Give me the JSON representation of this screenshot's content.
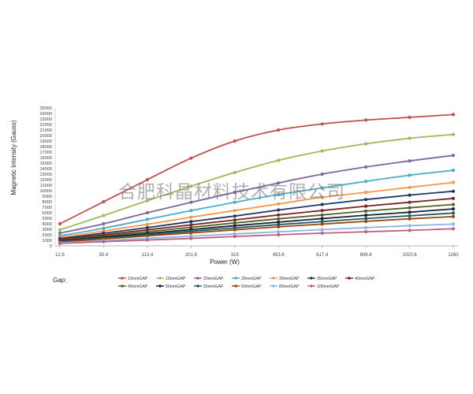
{
  "watermark": "合肥科晶材料技术有限公司",
  "legend_title": "Gap:",
  "chart_data": {
    "type": "line",
    "ylabel": "Magnetic Intensity (Gauss)",
    "xlabel": "Power  (W)",
    "categories": [
      "12.6",
      "50.4",
      "113.4",
      "201.6",
      "315",
      "453.6",
      "617.4",
      "806.4",
      "1020.6",
      "1260"
    ],
    "ylim": [
      0,
      25000
    ],
    "yticks": [
      0,
      1000,
      2000,
      3000,
      4000,
      5000,
      6000,
      7000,
      8000,
      9000,
      10000,
      11000,
      12000,
      13000,
      14000,
      15000,
      16000,
      17000,
      18000,
      19000,
      20000,
      21000,
      22000,
      23000,
      24000,
      25000
    ],
    "grid": false,
    "legend_position": "bottom",
    "series": [
      {
        "name": "10mmGAP",
        "color": "#c0504d",
        "values": [
          4000,
          8000,
          12000,
          15900,
          19000,
          21000,
          22100,
          22800,
          23300,
          23800
        ]
      },
      {
        "name": "15mmGAP",
        "color": "#9bbb59",
        "values": [
          2900,
          5500,
          8200,
          10800,
          13300,
          15500,
          17200,
          18500,
          19500,
          20200
        ]
      },
      {
        "name": "20mmGAP",
        "color": "#8064a2",
        "values": [
          2300,
          4000,
          6000,
          7900,
          9700,
          11400,
          13000,
          14300,
          15400,
          16400
        ]
      },
      {
        "name": "25mmGAP",
        "color": "#4bacc6",
        "values": [
          1800,
          3200,
          4800,
          6400,
          7900,
          9300,
          10500,
          11700,
          12800,
          13700
        ]
      },
      {
        "name": "30mmGAP",
        "color": "#f79646",
        "values": [
          1500,
          2700,
          3900,
          5200,
          6400,
          7600,
          8800,
          9700,
          10600,
          11500
        ]
      },
      {
        "name": "35mmGAP",
        "color": "#1f3864",
        "values": [
          1300,
          2300,
          3300,
          4400,
          5400,
          6500,
          7500,
          8400,
          9200,
          9900
        ]
      },
      {
        "name": "40mmGAP",
        "color": "#7b2324",
        "values": [
          1150,
          2000,
          2900,
          3800,
          4700,
          5600,
          6400,
          7200,
          7900,
          8600
        ]
      },
      {
        "name": "45mmGAP",
        "color": "#4f6228",
        "values": [
          1000,
          1750,
          2550,
          3350,
          4150,
          4900,
          5600,
          6300,
          6900,
          7500
        ]
      },
      {
        "name": "50mmGAP",
        "color": "#17202e",
        "values": [
          900,
          1550,
          2250,
          2950,
          3650,
          4300,
          4950,
          5550,
          6100,
          6700
        ]
      },
      {
        "name": "55mmGAP",
        "color": "#205867",
        "values": [
          800,
          1400,
          2000,
          2650,
          3250,
          3850,
          4400,
          4950,
          5450,
          5950
        ]
      },
      {
        "name": "60mmGAP",
        "color": "#974806",
        "values": [
          700,
          1250,
          1800,
          2350,
          2900,
          3450,
          3950,
          4450,
          4900,
          5300
        ]
      },
      {
        "name": "80mmGAP",
        "color": "#8eb4e3",
        "values": [
          550,
          950,
          1350,
          1750,
          2150,
          2550,
          2950,
          3300,
          3650,
          3950
        ]
      },
      {
        "name": "100mmGAP",
        "color": "#c06080",
        "values": [
          450,
          750,
          1050,
          1350,
          1700,
          2000,
          2300,
          2550,
          2800,
          3100
        ]
      }
    ]
  }
}
